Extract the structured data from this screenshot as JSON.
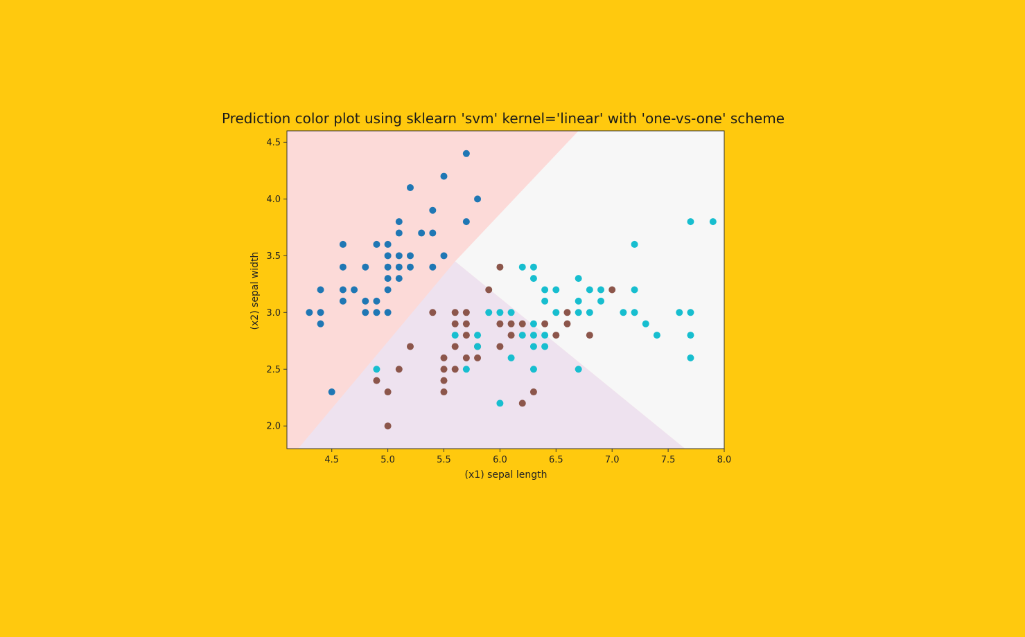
{
  "colors": {
    "background": "#FFC90E",
    "region_setosa": "#FCDAD8",
    "region_versicolor": "#EEE2EF",
    "region_virginica": "#F7F7F7",
    "setosa": "#1F77B4",
    "versicolor": "#8C564B",
    "virginica": "#17BECF"
  },
  "chart_data": {
    "type": "scatter",
    "title": "Prediction color plot using sklearn 'svm' kernel='linear' with 'one-vs-one' scheme",
    "xlabel": "(x1) sepal length",
    "ylabel": "(x2) sepal width",
    "xlim": [
      4.1,
      8.0
    ],
    "ylim": [
      1.8,
      4.6
    ],
    "xticks": [
      "4.5",
      "5.0",
      "5.5",
      "6.0",
      "6.5",
      "7.0",
      "7.5",
      "8.0"
    ],
    "yticks": [
      "2.0",
      "2.5",
      "3.0",
      "3.5",
      "4.0",
      "4.5"
    ],
    "grid": false,
    "legend": "none",
    "decision_regions": {
      "junction": [
        5.6,
        3.45
      ],
      "setosa_boundary_top": [
        6.7,
        4.6
      ],
      "setosa_boundary_bottom": [
        4.2,
        1.8
      ],
      "versicolor_virginica_boundary_end": [
        7.65,
        1.8
      ]
    },
    "series": [
      {
        "color": "#1F77B4",
        "points": [
          [
            4.3,
            3.0
          ],
          [
            4.4,
            2.9
          ],
          [
            4.4,
            3.0
          ],
          [
            4.4,
            3.2
          ],
          [
            4.5,
            2.3
          ],
          [
            4.6,
            3.1
          ],
          [
            4.6,
            3.2
          ],
          [
            4.6,
            3.4
          ],
          [
            4.6,
            3.6
          ],
          [
            4.7,
            3.2
          ],
          [
            4.8,
            3.0
          ],
          [
            4.8,
            3.1
          ],
          [
            4.8,
            3.4
          ],
          [
            4.9,
            3.0
          ],
          [
            4.9,
            3.1
          ],
          [
            4.9,
            3.6
          ],
          [
            5.0,
            3.0
          ],
          [
            5.0,
            3.2
          ],
          [
            5.0,
            3.3
          ],
          [
            5.0,
            3.4
          ],
          [
            5.0,
            3.5
          ],
          [
            5.0,
            3.6
          ],
          [
            5.1,
            3.3
          ],
          [
            5.1,
            3.4
          ],
          [
            5.1,
            3.5
          ],
          [
            5.1,
            3.7
          ],
          [
            5.1,
            3.8
          ],
          [
            5.2,
            3.4
          ],
          [
            5.2,
            3.5
          ],
          [
            5.2,
            4.1
          ],
          [
            5.3,
            3.7
          ],
          [
            5.4,
            3.4
          ],
          [
            5.4,
            3.7
          ],
          [
            5.4,
            3.9
          ],
          [
            5.5,
            3.5
          ],
          [
            5.5,
            4.2
          ],
          [
            5.7,
            3.8
          ],
          [
            5.7,
            4.4
          ],
          [
            5.8,
            4.0
          ]
        ]
      },
      {
        "color": "#8C564B",
        "points": [
          [
            4.9,
            2.4
          ],
          [
            5.0,
            2.0
          ],
          [
            5.0,
            2.3
          ],
          [
            5.1,
            2.5
          ],
          [
            5.2,
            2.7
          ],
          [
            5.4,
            3.0
          ],
          [
            5.5,
            2.3
          ],
          [
            5.5,
            2.4
          ],
          [
            5.5,
            2.5
          ],
          [
            5.5,
            2.6
          ],
          [
            5.6,
            2.5
          ],
          [
            5.6,
            2.7
          ],
          [
            5.6,
            2.9
          ],
          [
            5.6,
            3.0
          ],
          [
            5.7,
            2.6
          ],
          [
            5.7,
            2.8
          ],
          [
            5.7,
            2.9
          ],
          [
            5.7,
            3.0
          ],
          [
            5.8,
            2.6
          ],
          [
            5.8,
            2.7
          ],
          [
            5.9,
            3.2
          ],
          [
            6.0,
            2.7
          ],
          [
            6.0,
            2.9
          ],
          [
            6.0,
            3.4
          ],
          [
            6.1,
            2.8
          ],
          [
            6.1,
            2.9
          ],
          [
            6.2,
            2.2
          ],
          [
            6.2,
            2.9
          ],
          [
            6.3,
            2.3
          ],
          [
            6.4,
            2.9
          ],
          [
            6.5,
            2.8
          ],
          [
            6.6,
            2.9
          ],
          [
            6.6,
            3.0
          ],
          [
            6.8,
            2.8
          ],
          [
            7.0,
            3.2
          ]
        ]
      },
      {
        "color": "#17BECF",
        "points": [
          [
            4.9,
            2.5
          ],
          [
            5.6,
            2.8
          ],
          [
            5.7,
            2.5
          ],
          [
            5.8,
            2.7
          ],
          [
            5.8,
            2.8
          ],
          [
            5.9,
            3.0
          ],
          [
            6.0,
            2.2
          ],
          [
            6.0,
            3.0
          ],
          [
            6.1,
            2.6
          ],
          [
            6.1,
            3.0
          ],
          [
            6.2,
            2.8
          ],
          [
            6.2,
            3.4
          ],
          [
            6.3,
            2.5
          ],
          [
            6.3,
            2.7
          ],
          [
            6.3,
            2.8
          ],
          [
            6.3,
            2.9
          ],
          [
            6.3,
            3.3
          ],
          [
            6.3,
            3.4
          ],
          [
            6.4,
            2.7
          ],
          [
            6.4,
            2.8
          ],
          [
            6.4,
            3.1
          ],
          [
            6.4,
            3.2
          ],
          [
            6.5,
            3.0
          ],
          [
            6.5,
            3.2
          ],
          [
            6.7,
            2.5
          ],
          [
            6.7,
            3.0
          ],
          [
            6.7,
            3.1
          ],
          [
            6.7,
            3.3
          ],
          [
            6.8,
            3.0
          ],
          [
            6.8,
            3.2
          ],
          [
            6.9,
            3.1
          ],
          [
            6.9,
            3.2
          ],
          [
            7.1,
            3.0
          ],
          [
            7.2,
            3.0
          ],
          [
            7.2,
            3.2
          ],
          [
            7.2,
            3.6
          ],
          [
            7.3,
            2.9
          ],
          [
            7.4,
            2.8
          ],
          [
            7.6,
            3.0
          ],
          [
            7.7,
            2.6
          ],
          [
            7.7,
            2.8
          ],
          [
            7.7,
            3.0
          ],
          [
            7.7,
            3.8
          ],
          [
            7.9,
            3.8
          ]
        ]
      }
    ]
  }
}
